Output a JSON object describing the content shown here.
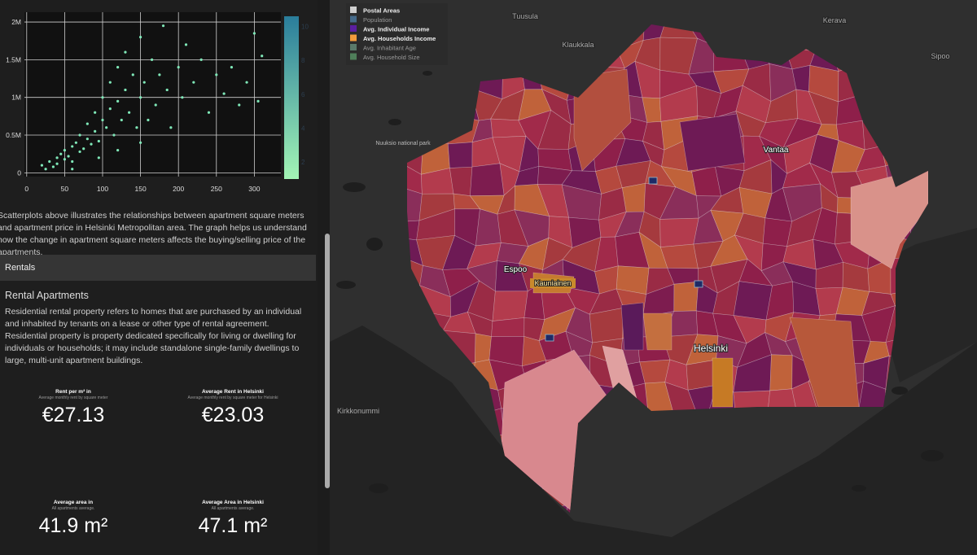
{
  "scatter": {
    "type": "scatter",
    "color": "#7fe8b8",
    "x": [
      20,
      25,
      30,
      35,
      40,
      40,
      45,
      50,
      50,
      55,
      60,
      60,
      65,
      70,
      70,
      75,
      80,
      80,
      85,
      90,
      90,
      95,
      100,
      100,
      105,
      110,
      110,
      115,
      120,
      120,
      125,
      130,
      130,
      135,
      140,
      145,
      150,
      150,
      155,
      160,
      165,
      170,
      175,
      180,
      185,
      190,
      200,
      205,
      210,
      220,
      230,
      240,
      250,
      260,
      270,
      280,
      290,
      300,
      305,
      310,
      95,
      60,
      120,
      150
    ],
    "y": [
      100000,
      50000,
      150000,
      80000,
      200000,
      120000,
      250000,
      180000,
      300000,
      220000,
      350000,
      150000,
      400000,
      280000,
      500000,
      320000,
      450000,
      650000,
      380000,
      550000,
      800000,
      420000,
      700000,
      1000000,
      600000,
      850000,
      1200000,
      500000,
      950000,
      1400000,
      700000,
      1100000,
      1600000,
      800000,
      1300000,
      600000,
      1000000,
      1800000,
      1200000,
      700000,
      1500000,
      900000,
      1300000,
      1950000,
      1100000,
      600000,
      1400000,
      1000000,
      1700000,
      1200000,
      1500000,
      800000,
      1300000,
      1050000,
      1400000,
      900000,
      1200000,
      1850000,
      950000,
      1550000,
      200000,
      50000,
      300000,
      400000
    ],
    "xlim": [
      -3,
      335
    ],
    "ylim": [
      -50000,
      2130000
    ],
    "xticks": [
      0,
      50,
      100,
      150,
      200,
      250,
      300
    ],
    "yticks": [
      0,
      {
        "value": 500000,
        "label": "0.5M"
      },
      {
        "value": 1000000,
        "label": "1M"
      },
      {
        "value": 1500000,
        "label": "1.5M"
      },
      {
        "value": 2000000,
        "label": "2M"
      }
    ],
    "grid": true,
    "colorbar": {
      "lim": [
        1,
        10.6
      ],
      "ticks": [
        2,
        4,
        6,
        8,
        10
      ],
      "colors": [
        "#a3f5b5",
        "#2a7d9b"
      ]
    }
  },
  "scatter_description": "Scatterplots above illustrates the relationships between apartment square meters and apartment price in Helsinki Metropolitan area. The graph helps us understand how the change in apartment square meters affects the buying/selling price of the apartments.",
  "section": {
    "title": "Rentals"
  },
  "rental": {
    "title": "Rental Apartments",
    "text": "Residential rental property refers to homes that are purchased by an individual and inhabited by tenants on a lease or other type of rental agreement. Residential property is property dedicated specifically for living or dwelling for individuals or households; it may include standalone single-family dwellings to large, multi-unit apartment buildings."
  },
  "kpis": [
    {
      "label": "Rent per m² in",
      "sublabel": "Average monthly rent by square meter",
      "value": "€27.13"
    },
    {
      "label": "Average Rent in Helsinki",
      "sublabel": "Average monthly rent by square meter for Helsinki",
      "value": "€23.03"
    },
    {
      "label": "Average area in",
      "sublabel": "All apartments average.",
      "value": "41.9 m²"
    },
    {
      "label": "Average Area in Helsinki",
      "sublabel": "All apartments average.",
      "value": "47.1 m²"
    }
  ],
  "map": {
    "legend": [
      "Postal Areas",
      "Population",
      "Avg. Individual Income",
      "Avg. Households Income",
      "Avg. Inhabitant Age",
      "Avg. Household Size"
    ],
    "places": [
      "Tuusula",
      "Kerava",
      "Klaukkala",
      "Sipoo",
      "Nuuksio national park",
      "Vantaa",
      "Espoo",
      "Kauniainen",
      "Helsinki",
      "Kirkkonummi"
    ]
  }
}
